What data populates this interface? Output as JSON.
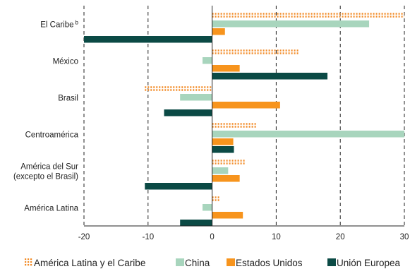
{
  "chart_data": {
    "type": "bar",
    "orientation": "horizontal",
    "title": "",
    "xlabel": "",
    "ylabel": "",
    "xlim": [
      -20,
      30
    ],
    "xticks": [
      -20,
      -10,
      0,
      10,
      20,
      30
    ],
    "gridlines": "vertical dashed",
    "legend_position": "bottom",
    "categories": [
      [
        "El Caribe",
        "b"
      ],
      [
        "México"
      ],
      [
        "Brasil"
      ],
      [
        "Centroamérica"
      ],
      [
        "América del Sur",
        "(excepto el Brasil)"
      ],
      [
        "América Latina"
      ]
    ],
    "series": [
      {
        "name": "América Latina y el Caribe",
        "color": "#f28c28",
        "style": "dotted",
        "values": [
          30,
          13.5,
          -10.5,
          7,
          5.2,
          1.2
        ]
      },
      {
        "name": "China",
        "color": "#a8d5bd",
        "style": "solid",
        "values": [
          24.5,
          -1.5,
          -5,
          30,
          2.5,
          -1.5
        ]
      },
      {
        "name": "Estados Unidos",
        "color": "#f7941d",
        "style": "solid",
        "values": [
          2,
          4.3,
          10.6,
          3.3,
          4.3,
          4.8
        ]
      },
      {
        "name": "Unión Europea",
        "color": "#0b4a45",
        "style": "solid",
        "values": [
          -20,
          18,
          -7.5,
          3.4,
          -10.5,
          -5
        ]
      }
    ]
  }
}
